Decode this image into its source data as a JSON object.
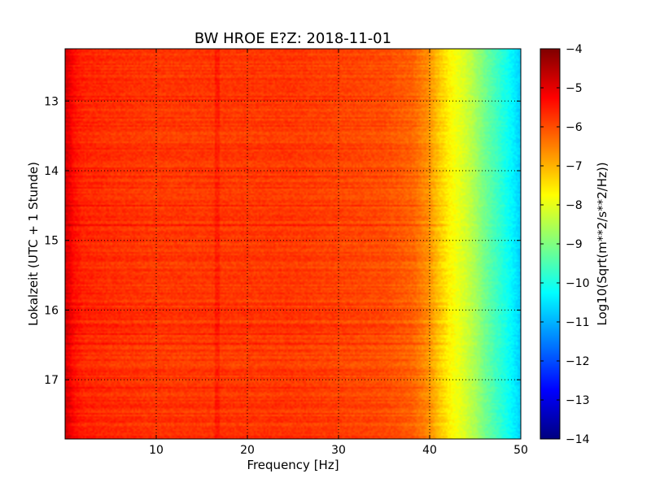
{
  "chart_data": {
    "type": "heatmap",
    "title": "BW HROE E?Z: 2018-11-01",
    "xlabel": "Frequency [Hz]",
    "ylabel": "Lokalzeit (UTC + 1 Stunde)",
    "xlim": [
      0,
      50
    ],
    "ylim": [
      12.25,
      17.85
    ],
    "y_inverted": true,
    "x_ticks": [
      10,
      20,
      30,
      40,
      50
    ],
    "y_ticks": [
      13,
      14,
      15,
      16,
      17
    ],
    "grid": true,
    "grid_style": "dotted",
    "colormap": "jet",
    "colorbar": {
      "label": "Log10(Sqrt(m**2/s**2/Hz))",
      "range": [
        -14,
        -4
      ],
      "ticks": [
        -4,
        -5,
        -6,
        -7,
        -8,
        -9,
        -10,
        -11,
        -12,
        -13,
        -14
      ]
    },
    "spectral_profile": {
      "frequency_hz": [
        0,
        0.5,
        1,
        2,
        5,
        10,
        15,
        20,
        25,
        30,
        35,
        38,
        40,
        41,
        42,
        43,
        44,
        45,
        46,
        47,
        48,
        49,
        50
      ],
      "level": [
        -4.8,
        -5.1,
        -5.4,
        -5.6,
        -5.7,
        -5.8,
        -5.8,
        -5.8,
        -5.8,
        -5.9,
        -6.0,
        -6.2,
        -6.7,
        -7.2,
        -7.6,
        -7.9,
        -8.2,
        -8.6,
        -9.1,
        -9.5,
        -9.9,
        -10.3,
        -10.7
      ]
    },
    "notable_features": [
      {
        "frequency_hz": 16.7,
        "description": "narrow vertical line of elevated level"
      }
    ]
  }
}
